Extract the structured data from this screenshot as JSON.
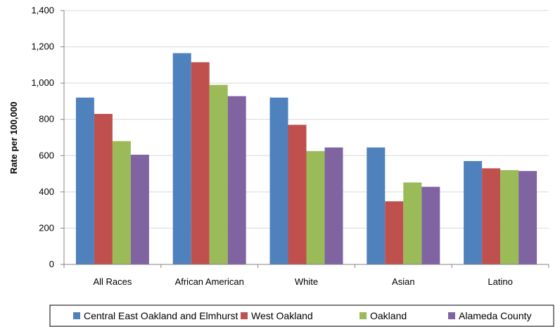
{
  "chart_data": {
    "type": "bar",
    "title": "",
    "xlabel": "",
    "ylabel": "Rate per 100,000",
    "ylim": [
      0,
      1400
    ],
    "yticks": [
      0,
      200,
      400,
      600,
      800,
      1000,
      1200,
      1400
    ],
    "ytick_labels": [
      "0",
      "200",
      "400",
      "600",
      "800",
      "1,000",
      "1,200",
      "1,400"
    ],
    "grid": true,
    "legend_position": "bottom",
    "categories": [
      "All Races",
      "African American",
      "White",
      "Asian",
      "Latino"
    ],
    "series": [
      {
        "name": "Central East Oakland and Elmhurst",
        "color": "#4F81BD",
        "values": [
          920,
          1165,
          920,
          645,
          570
        ]
      },
      {
        "name": "West Oakland",
        "color": "#C0504D",
        "values": [
          830,
          1115,
          770,
          348,
          530
        ]
      },
      {
        "name": "Oakland",
        "color": "#9BBB59",
        "values": [
          680,
          990,
          625,
          452,
          520
        ]
      },
      {
        "name": "Alameda County",
        "color": "#8064A2",
        "values": [
          605,
          928,
          645,
          428,
          515
        ]
      }
    ]
  }
}
